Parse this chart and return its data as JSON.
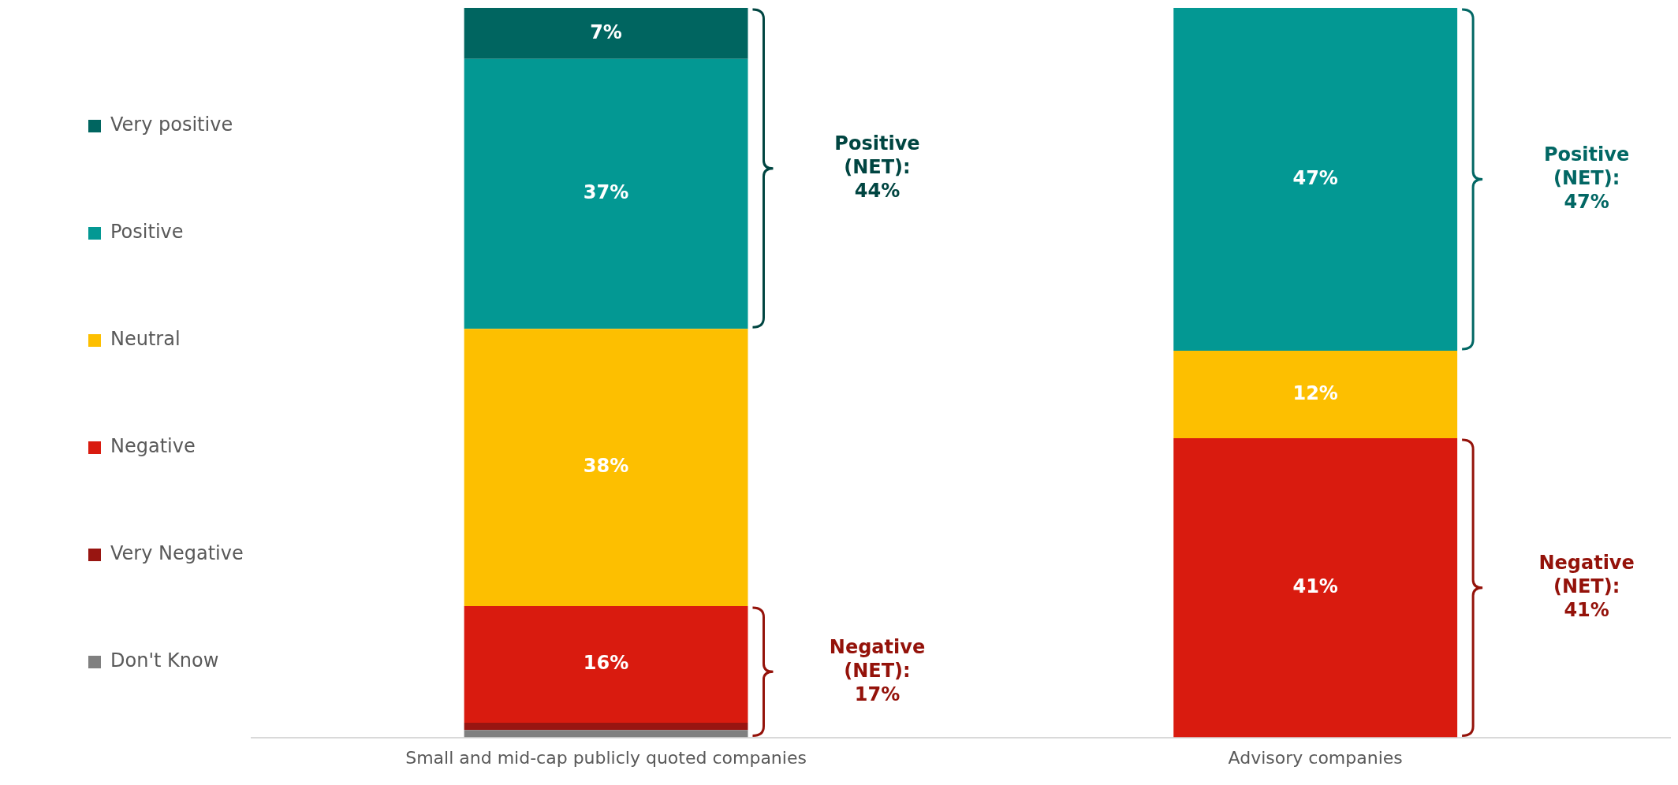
{
  "chart_data": {
    "type": "bar",
    "stacked": true,
    "categories": [
      "Small and mid-cap publicly quoted companies",
      "Advisory companies"
    ],
    "series": [
      {
        "name": "Don't Know",
        "color": "#808080",
        "values": [
          1,
          0
        ],
        "value_labels": [
          null,
          null
        ]
      },
      {
        "name": "Very Negative",
        "color": "#981511",
        "values": [
          1,
          0
        ],
        "value_labels": [
          null,
          null
        ]
      },
      {
        "name": "Negative",
        "color": "#d91b0f",
        "values": [
          16,
          41
        ],
        "value_labels": [
          "16%",
          "41%"
        ]
      },
      {
        "name": "Neutral",
        "color": "#fdbf00",
        "values": [
          38,
          12
        ],
        "value_labels": [
          "38%",
          "12%"
        ]
      },
      {
        "name": "Positive",
        "color": "#039893",
        "values": [
          37,
          47
        ],
        "value_labels": [
          "37%",
          "47%"
        ]
      },
      {
        "name": "Very positive",
        "color": "#006560",
        "values": [
          7,
          0
        ],
        "value_labels": [
          "7%",
          null
        ]
      }
    ],
    "ylim": [
      0,
      100
    ],
    "tick_labels": "x",
    "grid": false,
    "legend": "left",
    "annotations": [
      "Positive (NET): 44%",
      "Negative (NET): 17%",
      "Positive (NET): 47%",
      "Negative (NET): 41%"
    ]
  }
}
